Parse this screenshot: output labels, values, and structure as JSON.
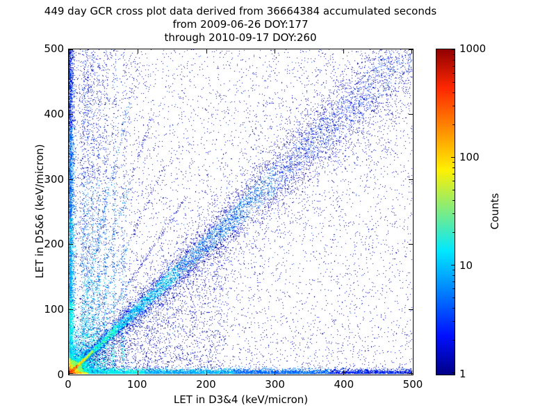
{
  "chart_data": {
    "type": "heatmap",
    "title": "449 day GCR cross plot data derived from 36664384 accumulated seconds",
    "subtitle": [
      "from 2009-06-26 DOY:177",
      "through 2010-09-17 DOY:260"
    ],
    "xlabel": "LET in D3&4 (keV/micron)",
    "ylabel": "LET in D5&6 (keV/micron)",
    "xlim": [
      0,
      500
    ],
    "ylim": [
      0,
      500
    ],
    "xticks": [
      0,
      100,
      200,
      300,
      400,
      500
    ],
    "yticks": [
      0,
      100,
      200,
      300,
      400,
      500
    ],
    "grid": false,
    "legend": "none",
    "colorbar": {
      "label": "Counts",
      "scale": "log",
      "range": [
        1,
        1000
      ],
      "ticks": [
        1,
        10,
        100,
        1000
      ],
      "colormap": "jet",
      "gradient": [
        {
          "c": "#000085",
          "p": 0
        },
        {
          "c": "#0010ff",
          "p": 12
        },
        {
          "c": "#00e8ff",
          "p": 38
        },
        {
          "c": "#fff000",
          "p": 63
        },
        {
          "c": "#ff2800",
          "p": 88
        },
        {
          "c": "#900000",
          "p": 100
        }
      ]
    },
    "palette": {
      "navy": "#000085",
      "blue": "#0008ff",
      "medblue": "#0050ff",
      "dodger": "#0090ff",
      "cyan": "#00e0ff",
      "teal": "#00ffc8",
      "green": "#60ff80",
      "chart": "#b0ff40",
      "yellow": "#ffe800",
      "orange": "#ff9000",
      "red": "#ff2000",
      "darkred": "#a00000"
    },
    "features": [
      {
        "type": "uniform",
        "n": 3000,
        "xpow": 1,
        "ypow": 1,
        "colors": [
          [
            "navy",
            0.7
          ],
          [
            "blue",
            0.3
          ]
        ]
      },
      {
        "type": "uniform",
        "n": 2600,
        "xpow": 2.8,
        "ypow": 1,
        "colors": [
          [
            "navy",
            0.55
          ],
          [
            "blue",
            0.33
          ],
          [
            "medblue",
            0.12
          ]
        ]
      },
      {
        "type": "uniform",
        "n": 1300,
        "xpow": 1,
        "ypow": 2.8,
        "colors": [
          [
            "navy",
            0.6
          ],
          [
            "blue",
            0.4
          ]
        ]
      },
      {
        "type": "wedge",
        "n": 2000,
        "xmax": 230,
        "colors": [
          [
            "navy",
            0.5
          ],
          [
            "blue",
            0.38
          ],
          [
            "medblue",
            0.12
          ]
        ]
      },
      {
        "type": "diagonal_halo",
        "n": 2600,
        "xpow": 1.4,
        "sig0": 10,
        "sigk": 0.16,
        "colors": [
          [
            "navy",
            0.45
          ],
          [
            "blue",
            0.45
          ],
          [
            "medblue",
            0.1
          ]
        ]
      },
      {
        "type": "hband",
        "n": 6500,
        "xpow": 1.6,
        "ysig": 3.5
      },
      {
        "type": "vband",
        "n": 5200,
        "ypow": 1.6,
        "xsig": 3.5
      },
      {
        "type": "vstreaks",
        "xs": [
          21,
          27,
          34,
          42,
          52,
          64,
          78
        ],
        "ns": [
          650,
          600,
          550,
          500,
          430,
          370,
          300
        ],
        "slope": 0.05,
        "jitter": 1.8
      },
      {
        "type": "rays",
        "slopes": [
          1.6,
          2.3,
          3.3,
          4.8
        ],
        "tmax": [
          170,
          140,
          120,
          100
        ],
        "n": 380
      },
      {
        "type": "diagonal",
        "n": 9500,
        "xpow": 1.7,
        "sig0": 2,
        "sigk": 0.07
      },
      {
        "type": "hotspot",
        "n": 15000,
        "scale": 9
      },
      {
        "type": "diag_core",
        "n": 1400,
        "len": 35
      },
      {
        "type": "axis_core",
        "axis": "x",
        "n": 800,
        "len": 28
      },
      {
        "type": "axis_core",
        "axis": "y",
        "n": 600,
        "len": 24
      }
    ]
  }
}
